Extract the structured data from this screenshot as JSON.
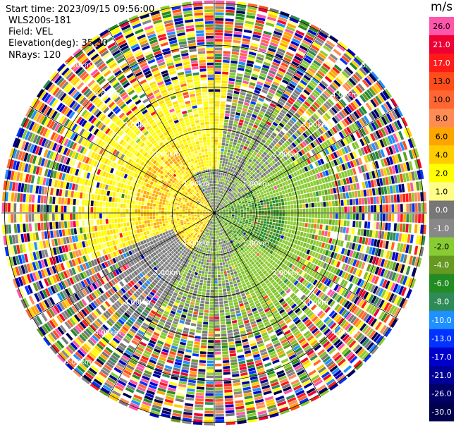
{
  "header": {
    "start_time": "Start time: 2023/09/15 09:56:00",
    "site": "WLS200s-181",
    "field": "Field: VEL",
    "elevation": "Elevation(deg): 35.30",
    "nrays": "NRays: 120"
  },
  "colorbar": {
    "unit": "m/s",
    "labels": [
      "26.0",
      "21.0",
      "17.0",
      "13.0",
      "10.0",
      "8.0",
      "6.0",
      "4.0",
      "2.0",
      "1.0",
      "0.0",
      "-1.0",
      "-2.0",
      "-4.0",
      "-6.0",
      "-8.0",
      "-10.0",
      "-13.0",
      "-17.0",
      "-21.0",
      "-26.0",
      "-30.0"
    ],
    "colors": [
      "#ff55aa",
      "#ee0033",
      "#ff1a1a",
      "#ff4d1a",
      "#ff6633",
      "#ff8c55",
      "#ffa500",
      "#ffcc00",
      "#ffff00",
      "#ffff88",
      "#777777",
      "#888888",
      "#88cc33",
      "#669922",
      "#228b22",
      "#2e8b57",
      "#1e90ff",
      "#0033ff",
      "#0000cc",
      "#000099",
      "#000066",
      "#00004d"
    ]
  },
  "rings": {
    "labels": [
      "1.00km",
      "2.00km",
      "3.00km",
      "4.00km",
      "5.00km"
    ]
  }
}
